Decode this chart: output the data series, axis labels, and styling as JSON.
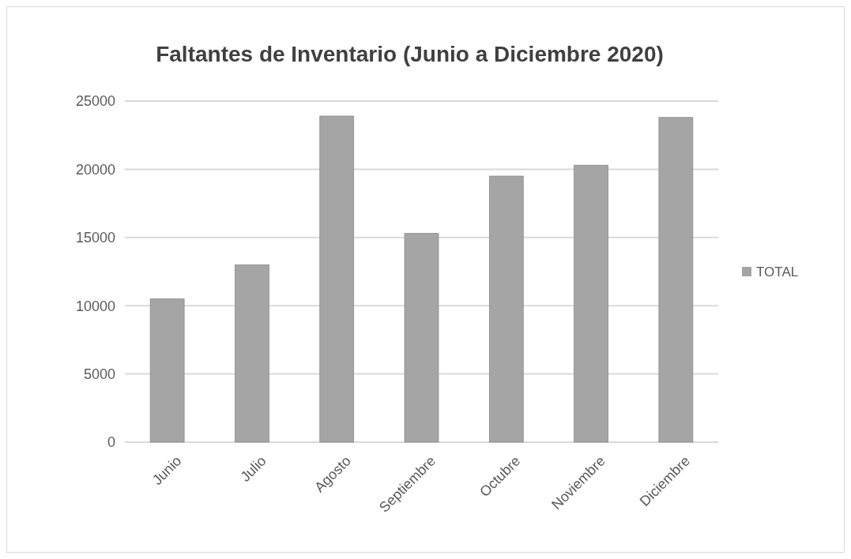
{
  "chart_data": {
    "type": "bar",
    "title": "Faltantes de Inventario (Junio a Diciembre 2020)",
    "categories": [
      "Junio",
      "Julio",
      "Agosto",
      "Septiembre",
      "Octubre",
      "Noviembre",
      "Diciembre"
    ],
    "series": [
      {
        "name": "TOTAL",
        "color": "#a5a5a5",
        "values": [
          10500,
          13000,
          23900,
          15300,
          19500,
          20300,
          23800
        ]
      }
    ],
    "ylim": [
      0,
      25000
    ],
    "yticks": [
      0,
      5000,
      10000,
      15000,
      20000,
      25000
    ],
    "grid": "y",
    "legend": "right"
  }
}
